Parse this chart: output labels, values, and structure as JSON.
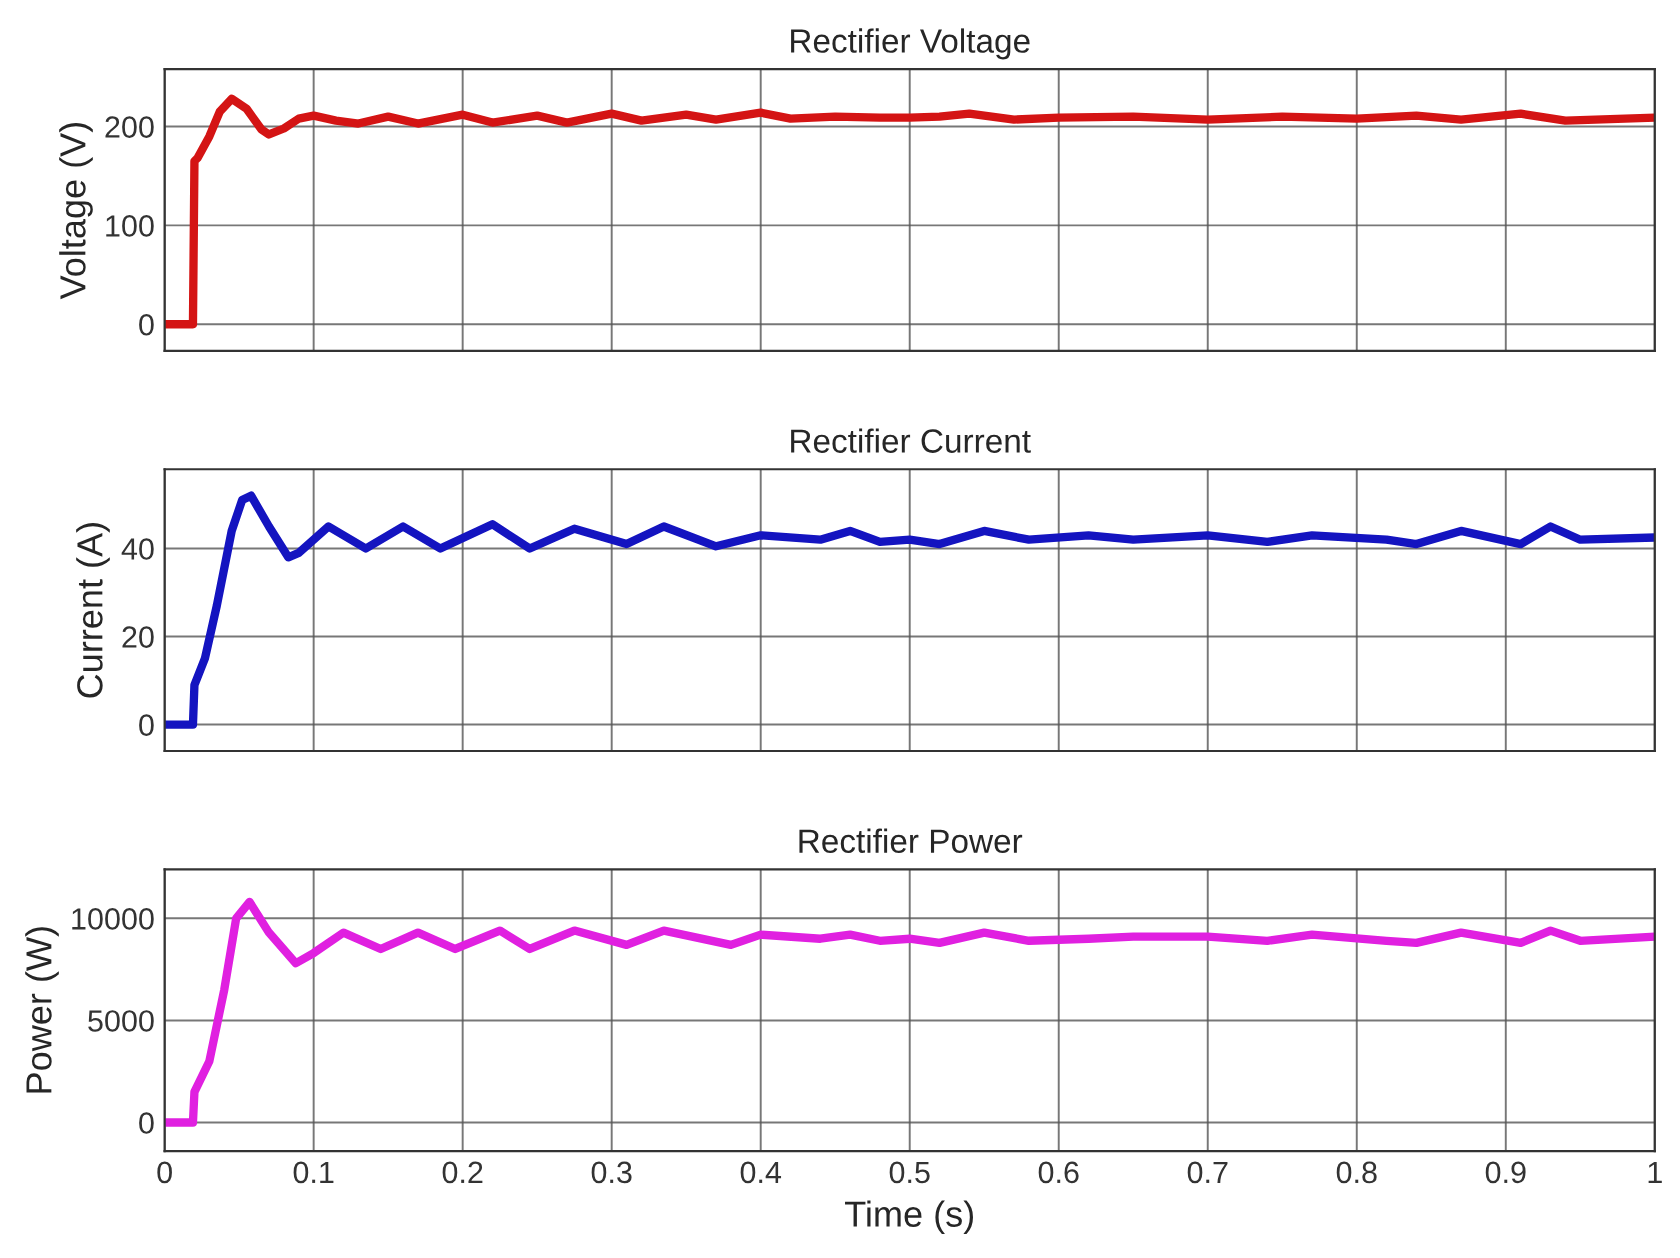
{
  "chart_data": [
    {
      "type": "line",
      "title": "Rectifier Voltage",
      "ylabel": "Voltage (V)",
      "xlim": [
        0,
        1
      ],
      "xticks": [
        0,
        0.1,
        0.2,
        0.3,
        0.4,
        0.5,
        0.6,
        0.7,
        0.8,
        0.9,
        1
      ],
      "ylim": [
        -27,
        258
      ],
      "yticks": [
        0,
        100,
        200
      ],
      "grid": true,
      "tick_labels": "y",
      "series": [
        {
          "color": "#d41414",
          "x": [
            0,
            0.019,
            0.02,
            0.022,
            0.03,
            0.037,
            0.045,
            0.055,
            0.065,
            0.07,
            0.08,
            0.09,
            0.1,
            0.115,
            0.13,
            0.15,
            0.17,
            0.2,
            0.22,
            0.25,
            0.27,
            0.3,
            0.32,
            0.35,
            0.37,
            0.4,
            0.42,
            0.45,
            0.48,
            0.5,
            0.52,
            0.54,
            0.57,
            0.6,
            0.65,
            0.7,
            0.75,
            0.8,
            0.84,
            0.87,
            0.91,
            0.94,
            1
          ],
          "values": [
            0,
            0,
            165,
            168,
            190,
            215,
            228,
            218,
            197,
            192,
            198,
            208,
            211,
            206,
            203,
            210,
            203,
            212,
            204,
            211,
            204,
            213,
            206,
            212,
            207,
            214,
            208,
            210,
            209,
            209,
            210,
            213,
            207,
            209,
            210,
            207,
            210,
            208,
            211,
            207,
            213,
            206,
            209
          ]
        }
      ]
    },
    {
      "type": "line",
      "title": "Rectifier Current",
      "ylabel": "Current (A)",
      "xlim": [
        0,
        1
      ],
      "xticks": [
        0,
        0.1,
        0.2,
        0.3,
        0.4,
        0.5,
        0.6,
        0.7,
        0.8,
        0.9,
        1
      ],
      "ylim": [
        -6,
        58
      ],
      "yticks": [
        0,
        20,
        40
      ],
      "grid": true,
      "tick_labels": "y",
      "series": [
        {
          "color": "#1414c0",
          "x": [
            0,
            0.019,
            0.02,
            0.027,
            0.035,
            0.045,
            0.052,
            0.058,
            0.07,
            0.083,
            0.09,
            0.11,
            0.135,
            0.16,
            0.185,
            0.22,
            0.245,
            0.275,
            0.31,
            0.335,
            0.37,
            0.4,
            0.44,
            0.46,
            0.48,
            0.5,
            0.52,
            0.55,
            0.58,
            0.62,
            0.65,
            0.7,
            0.74,
            0.77,
            0.82,
            0.84,
            0.87,
            0.91,
            0.93,
            0.95,
            1
          ],
          "values": [
            0,
            0,
            9,
            15,
            27,
            44,
            51,
            52,
            45,
            38,
            39,
            45,
            40,
            45,
            40,
            45.5,
            40,
            44.5,
            41,
            45,
            40.5,
            43,
            42,
            44,
            41.5,
            42,
            41,
            44,
            42,
            43,
            42,
            43,
            41.5,
            43,
            42,
            41,
            44,
            41,
            45,
            42,
            42.5
          ]
        }
      ]
    },
    {
      "type": "line",
      "title": "Rectifier Power",
      "ylabel": "Power (W)",
      "xlabel": "Time (s)",
      "xlim": [
        0,
        1
      ],
      "xticks": [
        0,
        0.1,
        0.2,
        0.3,
        0.4,
        0.5,
        0.6,
        0.7,
        0.8,
        0.9,
        1
      ],
      "ylim": [
        -1400,
        12400
      ],
      "yticks": [
        0,
        5000,
        10000
      ],
      "grid": true,
      "series": [
        {
          "color": "#e020e0",
          "x": [
            0,
            0.019,
            0.02,
            0.03,
            0.04,
            0.048,
            0.057,
            0.07,
            0.088,
            0.1,
            0.12,
            0.145,
            0.17,
            0.195,
            0.225,
            0.245,
            0.275,
            0.31,
            0.335,
            0.38,
            0.4,
            0.44,
            0.46,
            0.48,
            0.5,
            0.52,
            0.55,
            0.58,
            0.62,
            0.65,
            0.7,
            0.74,
            0.77,
            0.82,
            0.84,
            0.87,
            0.91,
            0.93,
            0.95,
            1
          ],
          "values": [
            0,
            0,
            1500,
            3000,
            6500,
            10000,
            10800,
            9300,
            7800,
            8300,
            9300,
            8500,
            9300,
            8500,
            9400,
            8500,
            9400,
            8700,
            9400,
            8700,
            9200,
            9000,
            9200,
            8900,
            9000,
            8800,
            9300,
            8900,
            9000,
            9100,
            9100,
            8900,
            9200,
            8900,
            8800,
            9300,
            8800,
            9400,
            8900,
            9100
          ]
        }
      ]
    }
  ]
}
